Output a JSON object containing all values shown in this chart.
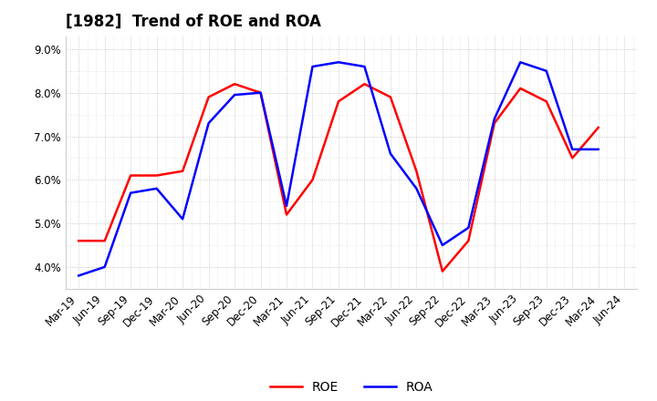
{
  "title": "[1982]  Trend of ROE and ROA",
  "labels": [
    "Mar-19",
    "Jun-19",
    "Sep-19",
    "Dec-19",
    "Mar-20",
    "Jun-20",
    "Sep-20",
    "Dec-20",
    "Mar-21",
    "Jun-21",
    "Sep-21",
    "Dec-21",
    "Mar-22",
    "Jun-22",
    "Sep-22",
    "Dec-22",
    "Mar-23",
    "Jun-23",
    "Sep-23",
    "Dec-23",
    "Mar-24",
    "Jun-24"
  ],
  "ROE": [
    4.6,
    4.6,
    6.1,
    6.1,
    6.2,
    7.9,
    8.2,
    8.0,
    5.2,
    6.0,
    7.8,
    8.2,
    7.9,
    6.2,
    3.9,
    4.6,
    7.3,
    8.1,
    7.8,
    6.5,
    7.2,
    null
  ],
  "ROA": [
    3.8,
    4.0,
    5.7,
    5.8,
    5.1,
    7.3,
    7.95,
    8.0,
    5.4,
    8.6,
    8.7,
    8.6,
    6.6,
    5.8,
    4.5,
    4.9,
    7.4,
    8.7,
    8.5,
    6.7,
    6.7,
    null
  ],
  "ROE_color": "#ff0000",
  "ROA_color": "#0000ff",
  "ylim": [
    3.5,
    9.3
  ],
  "yticks": [
    4.0,
    5.0,
    6.0,
    7.0,
    8.0,
    9.0
  ],
  "background_color": "#ffffff",
  "grid_color": "#aaaaaa",
  "title_fontsize": 12,
  "legend_fontsize": 10,
  "linewidth": 1.8
}
